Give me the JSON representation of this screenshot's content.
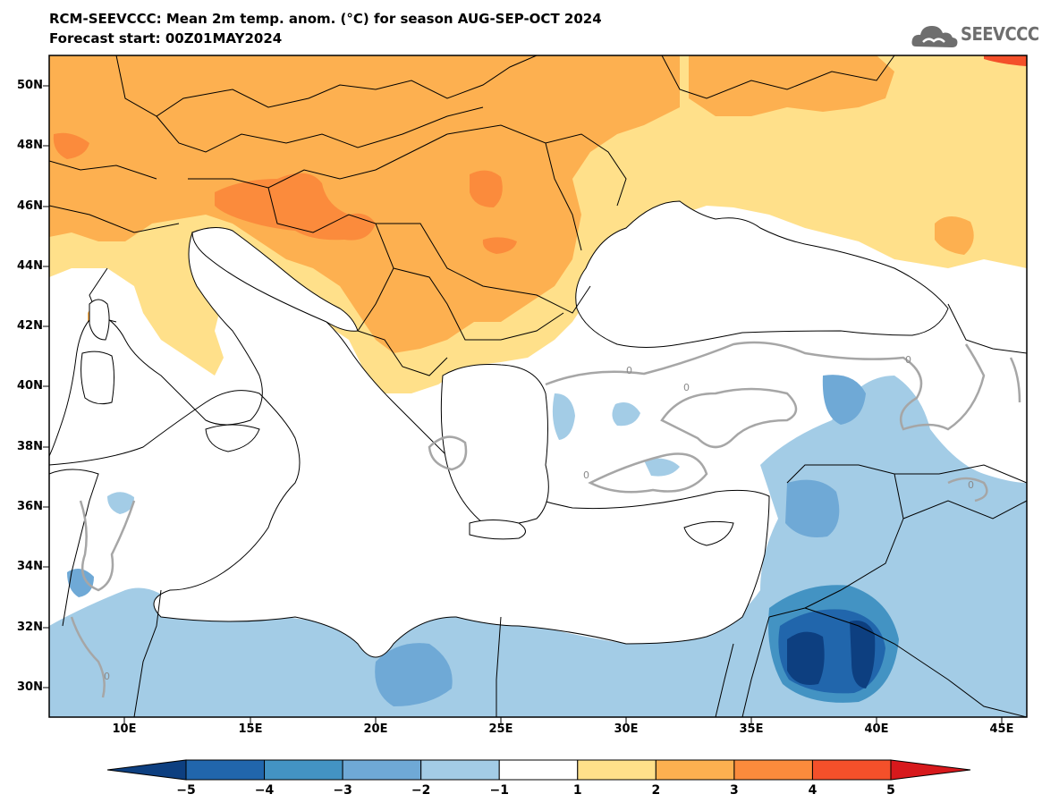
{
  "title_line1": "RCM-SEEVCCC: Mean 2m temp. anom. (°C) for season AUG-SEP-OCT 2024",
  "title_line2": "Forecast start: 00Z01MAY2024",
  "logo": {
    "icon": "cloud-icon",
    "text": "SEEVCCC"
  },
  "lat_labels": [
    "50N",
    "48N",
    "46N",
    "44N",
    "42N",
    "40N",
    "38N",
    "36N",
    "34N",
    "32N",
    "30N"
  ],
  "lon_labels": [
    "10E",
    "15E",
    "20E",
    "25E",
    "30E",
    "35E",
    "40E",
    "45E"
  ],
  "colorbar": {
    "labels": [
      "−5",
      "−4",
      "−3",
      "−2",
      "−1",
      "1",
      "2",
      "3",
      "4",
      "5"
    ],
    "colors": [
      "#0d3f80",
      "#2166ac",
      "#4393c3",
      "#6fa9d6",
      "#a3cce6",
      "#ffffff",
      "#ffe08a",
      "#fdb050",
      "#fb8b3c",
      "#f4502a",
      "#d7191c"
    ]
  },
  "contour_labels": [
    "0",
    "0",
    "0",
    "0",
    "0",
    "0"
  ]
}
